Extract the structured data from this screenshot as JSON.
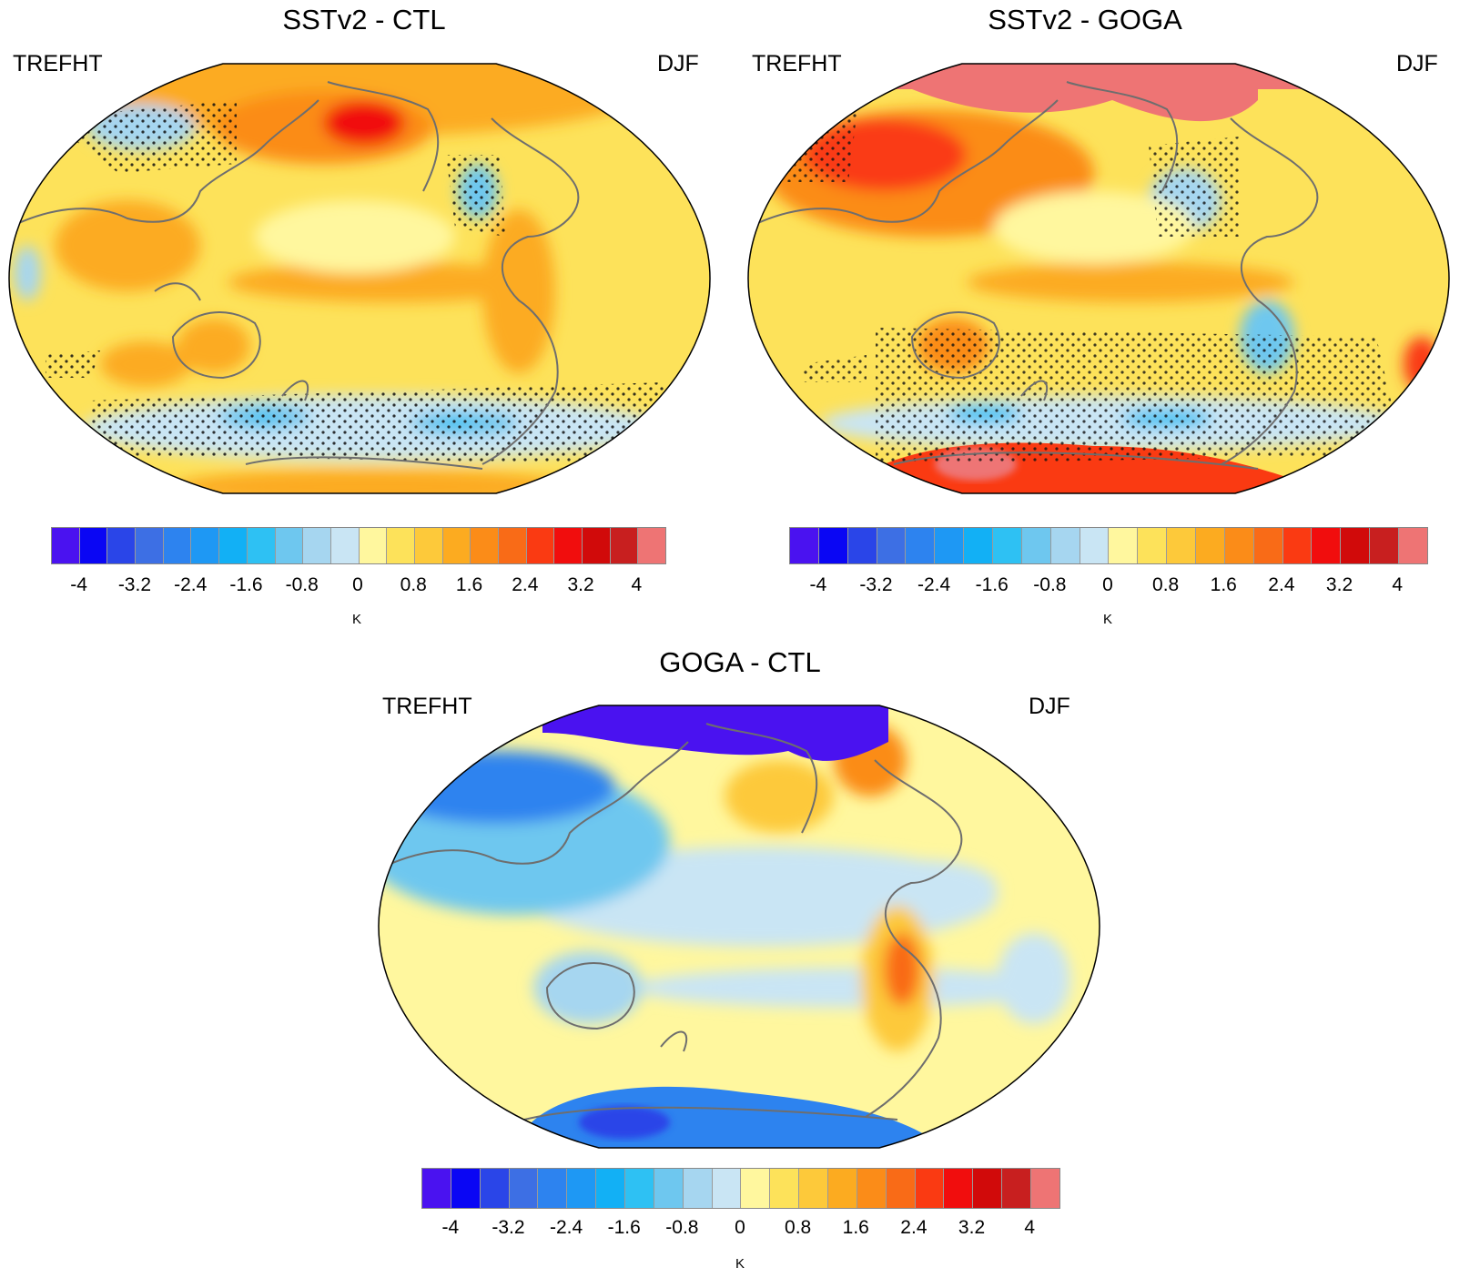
{
  "palette": [
    "#4a12f0",
    "#0a06f4",
    "#2a45e8",
    "#3d6fe4",
    "#2d83ef",
    "#1e98f4",
    "#12b0f5",
    "#2ec1f3",
    "#6ec7ef",
    "#a6d6f0",
    "#c9e5f4",
    "#fff79e",
    "#fde25a",
    "#fdc93a",
    "#fcab20",
    "#fb8c18",
    "#f96b17",
    "#fa3a12",
    "#f10d0d",
    "#d10a0a",
    "#c81f1f",
    "#ee7474"
  ],
  "colorbar": {
    "ticks": [
      "-4",
      "-3.2",
      "-2.4",
      "-1.6",
      "-0.8",
      "0",
      "0.8",
      "1.6",
      "2.4",
      "3.2",
      "4"
    ],
    "units": "K"
  },
  "panels": [
    {
      "title": "SSTv2 - CTL",
      "variable": "TREFHT",
      "season": "DJF",
      "fields": {
        "background": "#fde25a",
        "regions": [
          {
            "name": "arctic-north-pacific",
            "color": "#fcab20"
          },
          {
            "name": "alaska-hotspot",
            "color": "#f10d0d"
          },
          {
            "name": "eastern-north-america",
            "color": "#6ec7ef"
          },
          {
            "name": "equatorial-pacific",
            "color": "#fcab20"
          },
          {
            "name": "central-north-pacific",
            "color": "#fff79e"
          },
          {
            "name": "southern-ocean",
            "color": "#c9e5f4"
          },
          {
            "name": "southern-ocean-minimum",
            "color": "#2ec1f3"
          },
          {
            "name": "australia",
            "color": "#fcab20"
          },
          {
            "name": "siberia-cool",
            "color": "#a6d6f0"
          }
        ]
      }
    },
    {
      "title": "SSTv2 - GOGA",
      "variable": "TREFHT",
      "season": "DJF",
      "fields": {
        "background": "#fde25a",
        "regions": [
          {
            "name": "arctic-cap",
            "color": "#ee7474"
          },
          {
            "name": "eurasia-warm",
            "color": "#fa3a12"
          },
          {
            "name": "eastern-north-america",
            "color": "#a6d6f0"
          },
          {
            "name": "equatorial-pacific",
            "color": "#fcab20"
          },
          {
            "name": "southern-ocean",
            "color": "#c9e5f4"
          },
          {
            "name": "southern-ocean-minimum",
            "color": "#2ec1f3"
          },
          {
            "name": "antarctica",
            "color": "#fa3a12"
          },
          {
            "name": "australia",
            "color": "#fb8c18"
          }
        ]
      }
    },
    {
      "title": "GOGA - CTL",
      "variable": "TREFHT",
      "season": "DJF",
      "fields": {
        "background": "#fff79e",
        "regions": [
          {
            "name": "arctic-cap",
            "color": "#4a12f0"
          },
          {
            "name": "eurasia-cool",
            "color": "#2d83ef"
          },
          {
            "name": "pacific-cool",
            "color": "#c9e5f4"
          },
          {
            "name": "south-america-warm",
            "color": "#f96b17"
          },
          {
            "name": "greenland-warm",
            "color": "#fb8c18"
          },
          {
            "name": "antarctica",
            "color": "#2d83ef"
          }
        ]
      }
    }
  ]
}
